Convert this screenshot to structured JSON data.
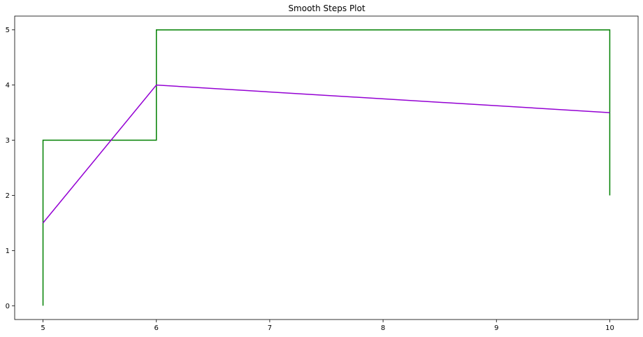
{
  "chart_data": {
    "type": "line",
    "title": "Smooth Steps Plot",
    "xlabel": "",
    "ylabel": "",
    "xlim": [
      4.75,
      10.25
    ],
    "ylim": [
      -0.25,
      5.25
    ],
    "x_ticks": [
      5,
      6,
      7,
      8,
      9,
      10
    ],
    "y_ticks": [
      0,
      1,
      2,
      3,
      4,
      5
    ],
    "grid": false,
    "legend": "none",
    "series": [
      {
        "style": "step",
        "color": "#008000",
        "x": [
          5,
          6,
          10
        ],
        "y": [
          0,
          3,
          5
        ],
        "step_end_y": 2
      },
      {
        "style": "line",
        "color": "#9400d3",
        "x": [
          5,
          6,
          10
        ],
        "y": [
          1.5,
          4,
          3.5
        ]
      }
    ]
  }
}
